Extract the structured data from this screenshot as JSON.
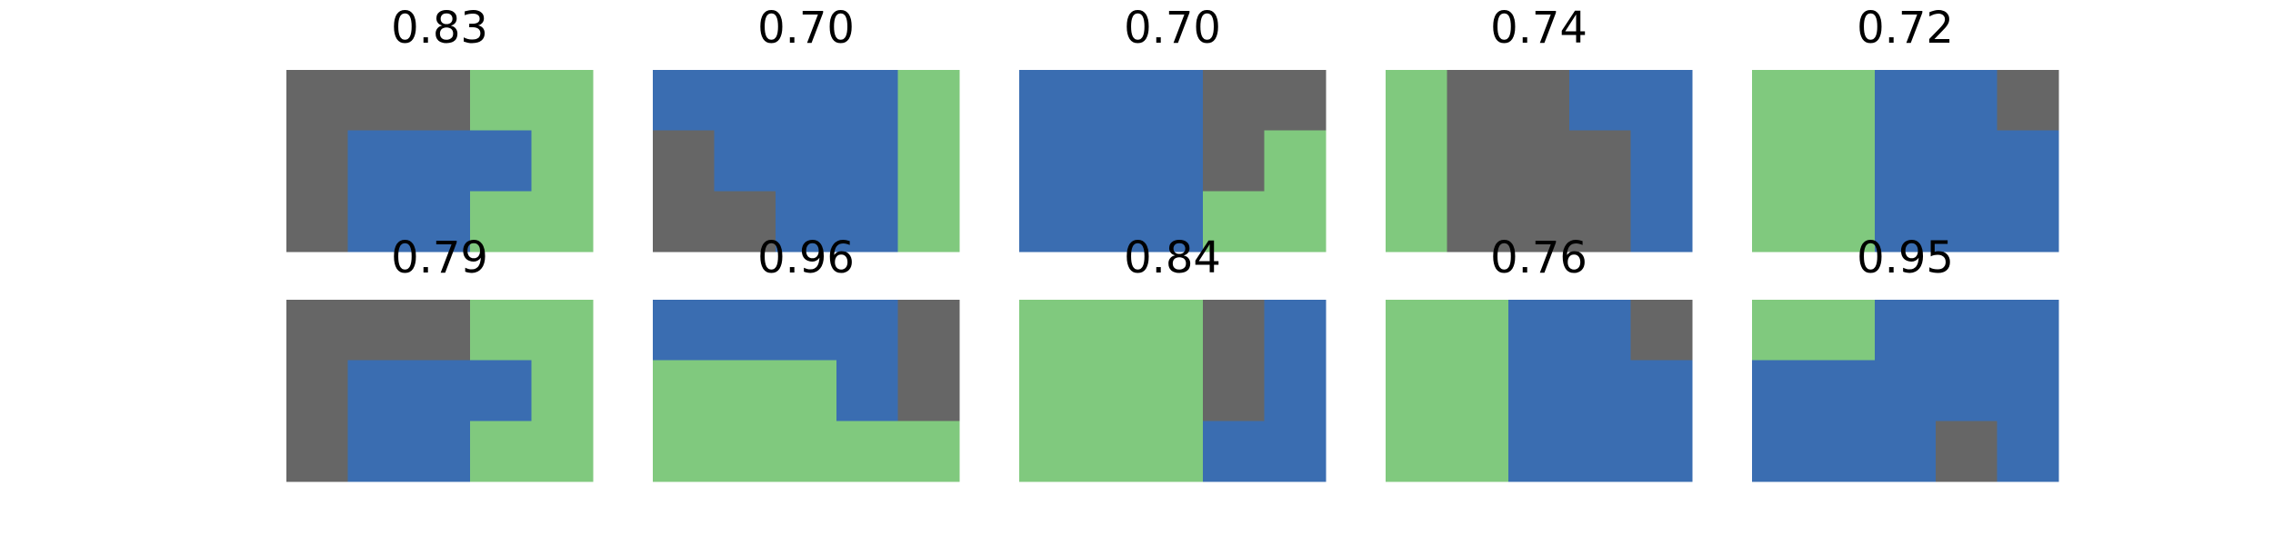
{
  "colors": {
    "blue": "#3a6db1",
    "green": "#80c97e",
    "gray": "#666666"
  },
  "grid": {
    "rows": 3,
    "cols": 5
  },
  "panels": [
    {
      "title": "0.83",
      "cells": [
        [
          "gray",
          "gray",
          "gray",
          "green",
          "green"
        ],
        [
          "gray",
          "blue",
          "blue",
          "blue",
          "green"
        ],
        [
          "gray",
          "blue",
          "blue",
          "green",
          "green"
        ]
      ]
    },
    {
      "title": "0.70",
      "cells": [
        [
          "blue",
          "blue",
          "blue",
          "blue",
          "green"
        ],
        [
          "gray",
          "blue",
          "blue",
          "blue",
          "green"
        ],
        [
          "gray",
          "gray",
          "blue",
          "blue",
          "green"
        ]
      ]
    },
    {
      "title": "0.70",
      "cells": [
        [
          "blue",
          "blue",
          "blue",
          "gray",
          "gray"
        ],
        [
          "blue",
          "blue",
          "blue",
          "gray",
          "green"
        ],
        [
          "blue",
          "blue",
          "blue",
          "green",
          "green"
        ]
      ]
    },
    {
      "title": "0.74",
      "cells": [
        [
          "green",
          "gray",
          "gray",
          "blue",
          "blue"
        ],
        [
          "green",
          "gray",
          "gray",
          "gray",
          "blue"
        ],
        [
          "green",
          "gray",
          "gray",
          "gray",
          "blue"
        ]
      ]
    },
    {
      "title": "0.72",
      "cells": [
        [
          "green",
          "green",
          "blue",
          "blue",
          "gray"
        ],
        [
          "green",
          "green",
          "blue",
          "blue",
          "blue"
        ],
        [
          "green",
          "green",
          "blue",
          "blue",
          "blue"
        ]
      ]
    },
    {
      "title": "0.79",
      "cells": [
        [
          "gray",
          "gray",
          "gray",
          "green",
          "green"
        ],
        [
          "gray",
          "blue",
          "blue",
          "blue",
          "green"
        ],
        [
          "gray",
          "blue",
          "blue",
          "green",
          "green"
        ]
      ]
    },
    {
      "title": "0.96",
      "cells": [
        [
          "blue",
          "blue",
          "blue",
          "blue",
          "gray"
        ],
        [
          "green",
          "green",
          "green",
          "blue",
          "gray"
        ],
        [
          "green",
          "green",
          "green",
          "green",
          "green"
        ]
      ]
    },
    {
      "title": "0.84",
      "cells": [
        [
          "green",
          "green",
          "green",
          "gray",
          "blue"
        ],
        [
          "green",
          "green",
          "green",
          "gray",
          "blue"
        ],
        [
          "green",
          "green",
          "green",
          "blue",
          "blue"
        ]
      ]
    },
    {
      "title": "0.76",
      "cells": [
        [
          "green",
          "green",
          "blue",
          "blue",
          "gray"
        ],
        [
          "green",
          "green",
          "blue",
          "blue",
          "blue"
        ],
        [
          "green",
          "green",
          "blue",
          "blue",
          "blue"
        ]
      ]
    },
    {
      "title": "0.95",
      "cells": [
        [
          "green",
          "green",
          "blue",
          "blue",
          "blue"
        ],
        [
          "blue",
          "blue",
          "blue",
          "blue",
          "blue"
        ],
        [
          "blue",
          "blue",
          "blue",
          "gray",
          "blue"
        ]
      ]
    }
  ]
}
